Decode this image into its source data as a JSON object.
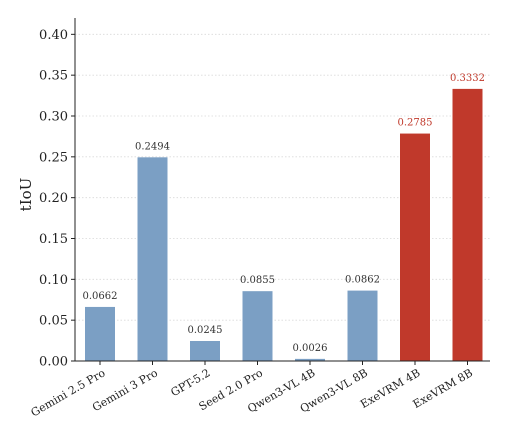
{
  "chart_data": {
    "type": "bar",
    "title": "",
    "xlabel": "",
    "ylabel": "tIoU",
    "ylim": [
      0,
      0.42
    ],
    "yticks": [
      "0.00",
      "0.05",
      "0.10",
      "0.15",
      "0.20",
      "0.25",
      "0.30",
      "0.35",
      "0.40"
    ],
    "grid": "horizontal dotted",
    "categories": [
      "Gemini 2.5 Pro",
      "Gemini 3 Pro",
      "GPT-5.2",
      "Seed 2.0 Pro",
      "Qwen3-VL 4B",
      "Qwen3-VL 8B",
      "ExeVRM 4B",
      "ExeVRM 8B"
    ],
    "values": [
      0.0662,
      0.2494,
      0.0245,
      0.0855,
      0.0026,
      0.0862,
      0.2785,
      0.3332
    ],
    "value_labels": [
      "0.0662",
      "0.2494",
      "0.0245",
      "0.0855",
      "0.0026",
      "0.0862",
      "0.2785",
      "0.3332"
    ],
    "highlighted": [
      false,
      false,
      false,
      false,
      false,
      false,
      true,
      true
    ],
    "colors": {
      "base": "#7b9fc4",
      "highlight": "#c0392b",
      "highlight_text": "#c0392b"
    }
  }
}
